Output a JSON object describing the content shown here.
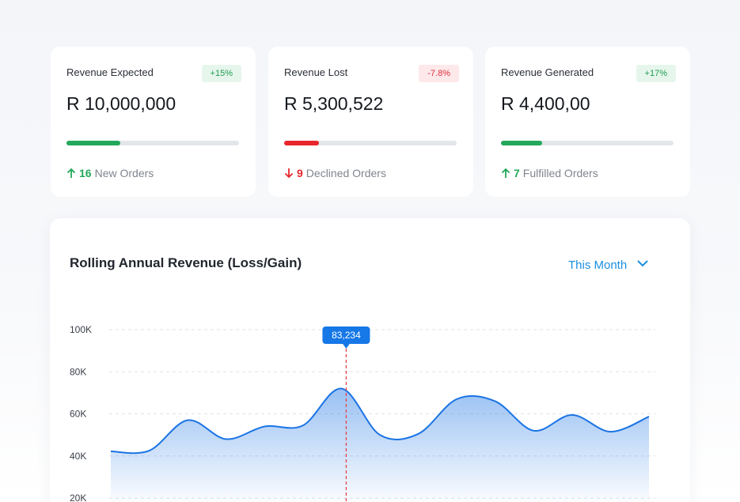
{
  "cards": [
    {
      "title": "Revenue Expected",
      "badge": "+15%",
      "trend": "up",
      "amount": "R 10,000,000",
      "progress": 0.31,
      "count": "16",
      "count_label": "New Orders"
    },
    {
      "title": "Revenue Lost",
      "badge": "-7.8%",
      "trend": "down",
      "amount": "R 5,300,522",
      "progress": 0.2,
      "count": "9",
      "count_label": "Declined Orders"
    },
    {
      "title": "Revenue Generated",
      "badge": "+17%",
      "trend": "up",
      "amount": "R 4,400,00",
      "progress": 0.24,
      "count": "7",
      "count_label": "Fulfilled Orders"
    }
  ],
  "chart_data": {
    "type": "area",
    "title": "Rolling Annual Revenue (Loss/Gain)",
    "period": "This Month",
    "tooltip": "83,234",
    "categories": [
      null,
      null,
      null,
      null,
      null,
      null,
      null,
      null,
      null,
      null,
      null,
      null,
      null,
      null,
      null
    ],
    "series": [
      {
        "name": "Revenue",
        "color": "#1b74e4",
        "values": [
          42200,
          42500,
          57000,
          48000,
          54000,
          54500,
          72000,
          50000,
          50500,
          67000,
          66000,
          52000,
          59500,
          51500,
          58700
        ]
      }
    ],
    "ylim": [
      20000,
      100000
    ],
    "yticks": [
      {
        "value": 20000,
        "label": "20K"
      },
      {
        "value": 40000,
        "label": "40K"
      },
      {
        "value": 60000,
        "label": "60K"
      },
      {
        "value": 80000,
        "label": "80K"
      },
      {
        "value": 100000,
        "label": "100K"
      }
    ],
    "grid": true
  }
}
